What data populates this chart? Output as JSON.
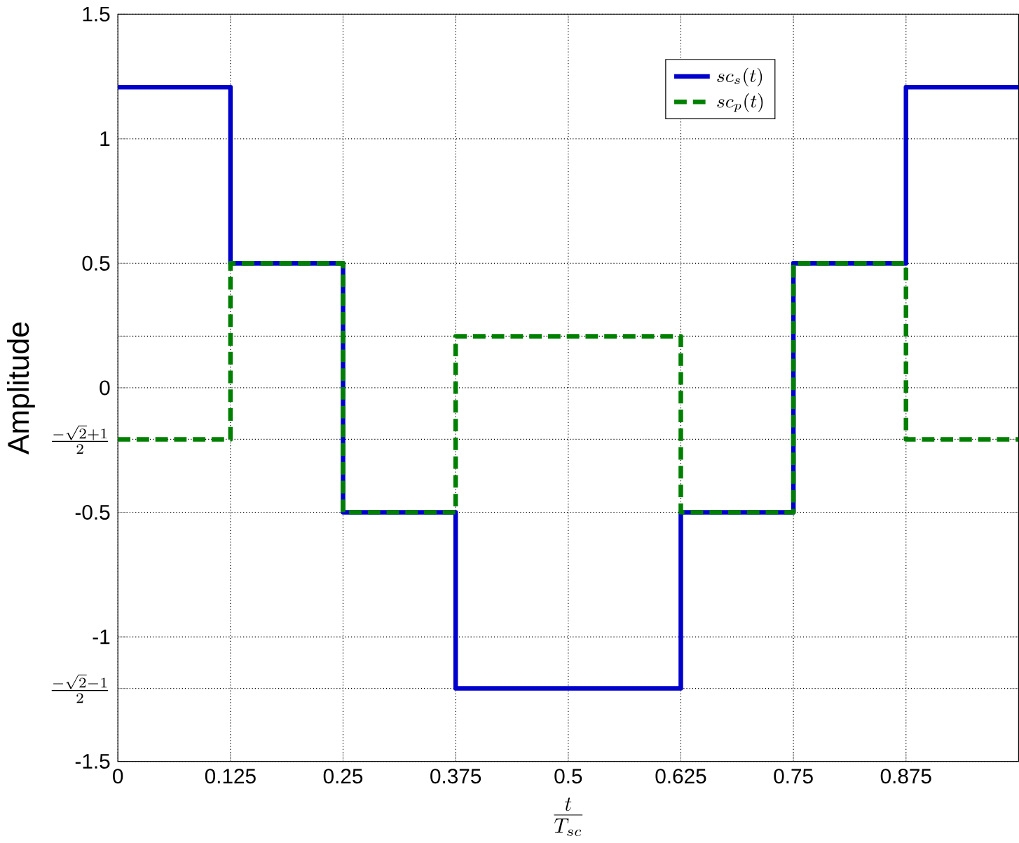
{
  "chart_data": {
    "type": "step",
    "xlabel": "\\frac{t}{T_{sc}}",
    "ylabel": "Amplitude",
    "x": [
      0,
      0.125,
      0.25,
      0.375,
      0.5,
      0.625,
      0.75,
      0.875,
      1
    ],
    "series": [
      {
        "name": "sc_s(t)",
        "color": "#0000cc",
        "line_style": "solid",
        "values": [
          1.207,
          0.5,
          -0.5,
          -1.207,
          -1.207,
          -0.5,
          0.5,
          1.207,
          1.207
        ]
      },
      {
        "name": "sc_p(t)",
        "color": "#008000",
        "line_style": "dashed",
        "values": [
          -0.207,
          0.5,
          -0.5,
          0.207,
          0.207,
          -0.5,
          0.5,
          -0.207,
          -0.207
        ]
      }
    ],
    "xlim": [
      0,
      1
    ],
    "ylim": [
      -1.5,
      1.5
    ],
    "xticks": [
      0,
      0.125,
      0.25,
      0.375,
      0.5,
      0.625,
      0.75,
      0.875
    ],
    "yticks": [
      -1.5,
      {
        "value": -1.207,
        "label": "\\frac{-\\sqrt{2}-1}{2}"
      },
      -1,
      -0.5,
      {
        "value": -0.207,
        "label": "\\frac{-\\sqrt{2}+1}{2}"
      },
      0,
      {
        "value": 0.207,
        "label": null
      },
      0.5,
      1,
      1.5
    ],
    "grid": true,
    "legend": "top right",
    "marker": "none"
  }
}
